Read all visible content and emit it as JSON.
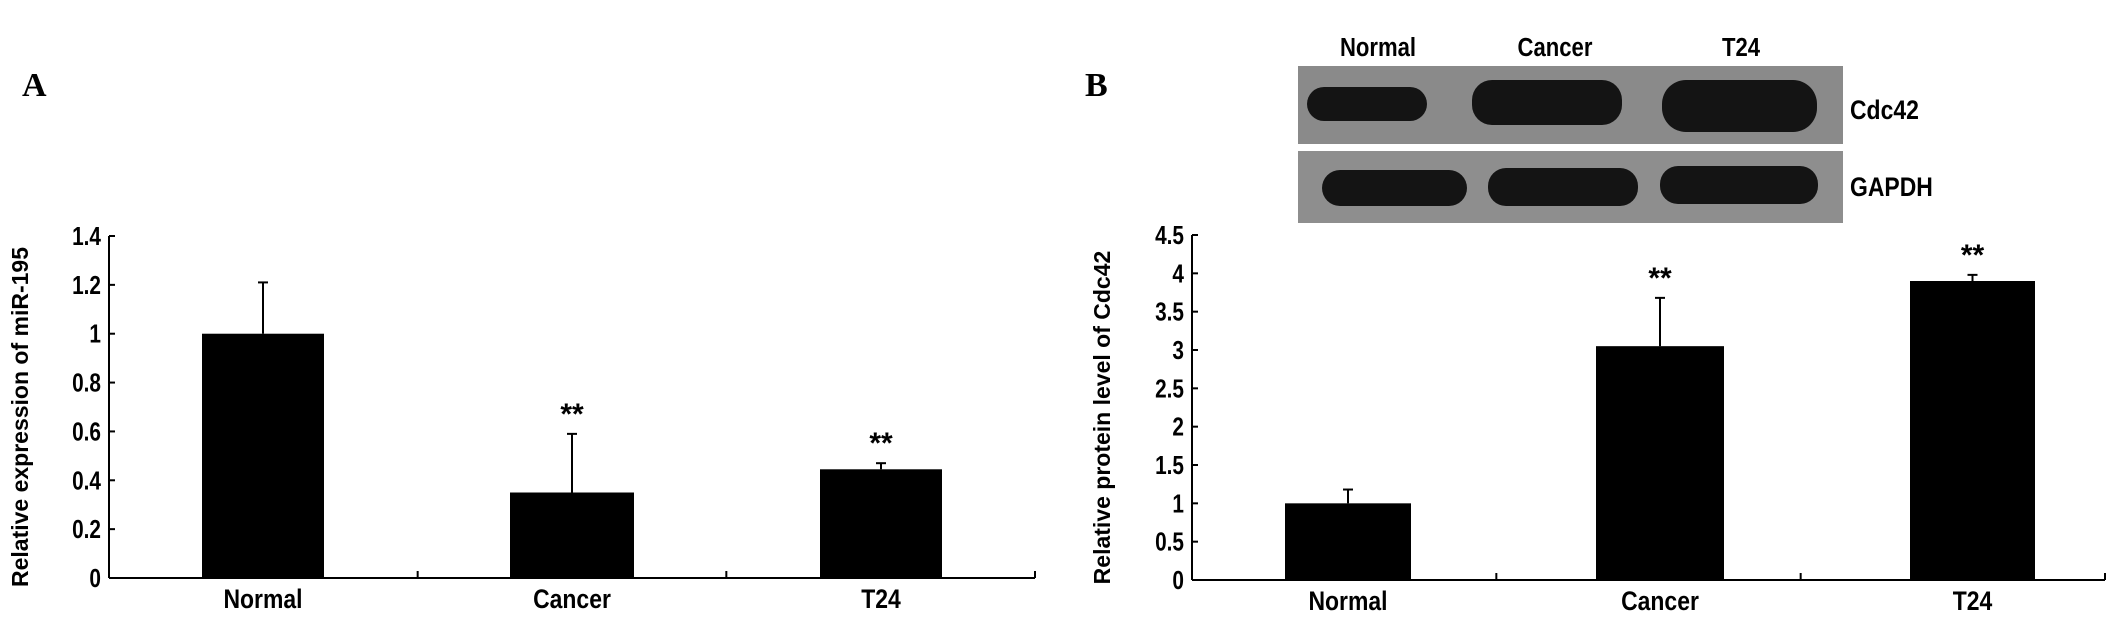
{
  "chart_data": [
    {
      "panel": "A",
      "type": "bar",
      "title": "",
      "xlabel": "",
      "ylabel": "Relative expression of miR-195",
      "categories": [
        "Normal",
        "Cancer",
        "T24"
      ],
      "values": [
        1.0,
        0.35,
        0.445
      ],
      "error_upper": [
        1.21,
        0.59,
        0.47
      ],
      "significance": [
        "",
        "**",
        "**"
      ],
      "ylim": [
        0,
        1.4
      ],
      "yticks": [
        0,
        0.2,
        0.4,
        0.6,
        0.8,
        1,
        1.2,
        1.4
      ],
      "ytick_labels": [
        "0",
        "0.2",
        "0.4",
        "0.6",
        "0.8",
        "1",
        "1.2",
        "1.4"
      ],
      "grid": false,
      "bar_color": "#000000"
    },
    {
      "panel": "B",
      "type": "bar",
      "title": "",
      "xlabel": "",
      "ylabel": "Relative protein level of Cdc42",
      "categories": [
        "Normal",
        "Cancer",
        "T24"
      ],
      "values": [
        1.0,
        3.05,
        3.9
      ],
      "error_upper": [
        1.18,
        3.68,
        3.98
      ],
      "significance": [
        "",
        "**",
        "**"
      ],
      "ylim": [
        0,
        4.5
      ],
      "yticks": [
        0,
        0.5,
        1,
        1.5,
        2,
        2.5,
        3,
        3.5,
        4,
        4.5
      ],
      "ytick_labels": [
        "0",
        "0.5",
        "1",
        "1.5",
        "2",
        "2.5",
        "3",
        "3.5",
        "4",
        "4.5"
      ],
      "grid": false,
      "bar_color": "#000000"
    }
  ],
  "blot": {
    "lane_labels": [
      "Normal",
      "Cancer",
      "T24"
    ],
    "rows": [
      {
        "label": "Cdc42"
      },
      {
        "label": "GAPDH"
      }
    ],
    "background_color": "#8a8a8a",
    "band_color": "#141414"
  }
}
